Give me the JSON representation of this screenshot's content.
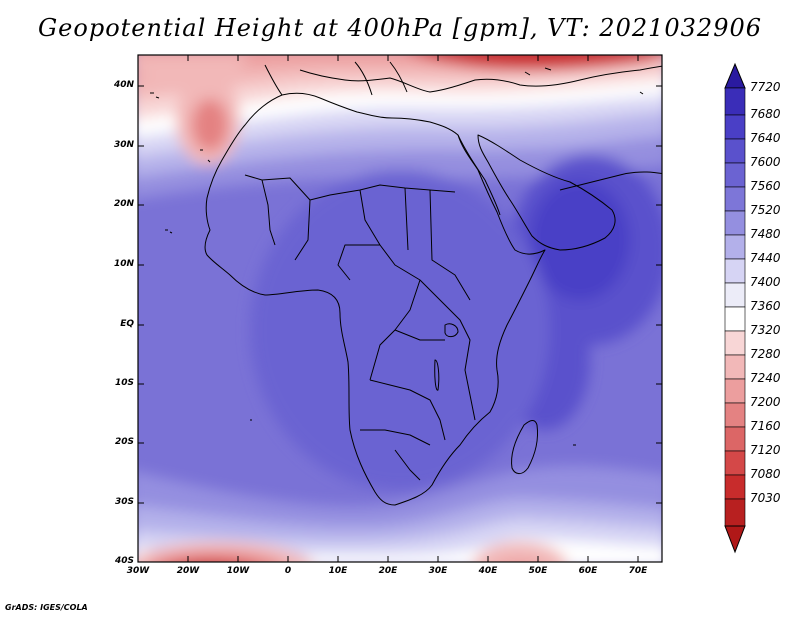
{
  "title": "Geopotential Height at 400hPa [gpm], VT: 2021032906",
  "footer": "GrADS: IGES/COLA",
  "map": {
    "lat_labels": [
      "40N",
      "30N",
      "20N",
      "10N",
      "EQ",
      "10S",
      "20S",
      "30S",
      "40S"
    ],
    "lon_labels": [
      "30W",
      "20W",
      "10W",
      "0",
      "10E",
      "20E",
      "30E",
      "40E",
      "50E",
      "60E",
      "70E"
    ],
    "lat_range": [
      -40,
      45
    ],
    "lon_range": [
      -30,
      75
    ]
  },
  "legend": {
    "levels": [
      "7720",
      "7680",
      "7640",
      "7600",
      "7560",
      "7520",
      "7480",
      "7440",
      "7400",
      "7360",
      "7320",
      "7280",
      "7240",
      "7200",
      "7160",
      "7120",
      "7080",
      "7030"
    ],
    "colors": [
      "#2a1aa0",
      "#3a2db8",
      "#4a3fc6",
      "#5a51cc",
      "#6b63d2",
      "#7d76d8",
      "#948fe0",
      "#b3b0ea",
      "#d6d4f4",
      "#ffffff",
      "#f8d6d6",
      "#f2b8b8",
      "#ec9e9e",
      "#e48282",
      "#dc6666",
      "#d44848",
      "#c82c2c",
      "#b01818"
    ]
  }
}
